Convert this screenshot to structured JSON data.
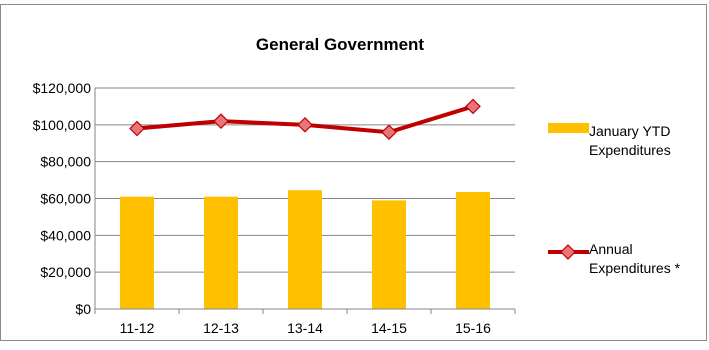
{
  "chart_data": {
    "type": "bar",
    "title": "General Government",
    "xlabel": "",
    "ylabel": "",
    "categories": [
      "11-12",
      "12-13",
      "13-14",
      "14-15",
      "15-16"
    ],
    "ylim": [
      0,
      120000
    ],
    "y_tick_values": [
      0,
      20000,
      40000,
      60000,
      80000,
      100000,
      120000
    ],
    "y_tick_labels": [
      "$0",
      "$20,000",
      "$40,000",
      "$60,000",
      "$80,000",
      "$100,000",
      "$120,000"
    ],
    "grid": true,
    "legend_position": "right",
    "series": [
      {
        "name": "January YTD Expenditures",
        "legend_lines": [
          "January YTD",
          "Expenditures"
        ],
        "type": "bar",
        "color": "#FFC000",
        "values": [
          61000,
          61000,
          64500,
          59000,
          63500
        ]
      },
      {
        "name": "Annual Expenditures *",
        "legend_lines": [
          "Annual",
          "Expenditures *"
        ],
        "type": "line",
        "color": "#C00000",
        "marker_color": "#E8757A",
        "values": [
          98000,
          102000,
          100000,
          96000,
          110000
        ]
      }
    ]
  }
}
